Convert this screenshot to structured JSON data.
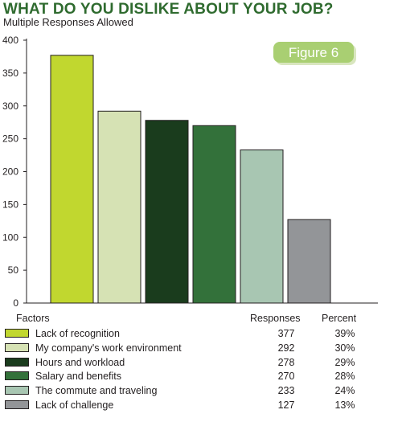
{
  "header": {
    "title": "WHAT DO YOU DISLIKE ABOUT YOUR JOB?",
    "subtitle": "Multiple Responses Allowed"
  },
  "badge": {
    "label": "Figure 6",
    "color": "#a9cf72"
  },
  "legend_headers": {
    "factors": "Factors",
    "responses": "Responses",
    "percent": "Percent"
  },
  "chart_data": {
    "type": "bar",
    "title": "WHAT DO YOU DISLIKE ABOUT YOUR JOB?",
    "subtitle": "Multiple Responses Allowed",
    "categories": [
      "Lack of recognition",
      "My company's work environment",
      "Hours and workload",
      "Salary and benefits",
      "The commute and traveling",
      "Lack of challenge"
    ],
    "values": [
      377,
      292,
      278,
      270,
      233,
      127
    ],
    "percent": [
      "39%",
      "30%",
      "29%",
      "28%",
      "24%",
      "13%"
    ],
    "colors": [
      "#c1d72f",
      "#d6e2b4",
      "#1a3c1d",
      "#33713a",
      "#a8c6b2",
      "#939598"
    ],
    "ylim": [
      0,
      400
    ],
    "yticks": [
      "0",
      "50",
      "100",
      "150",
      "200",
      "250",
      "300",
      "350",
      "400"
    ],
    "grid": false,
    "legend_position": "bottom"
  }
}
